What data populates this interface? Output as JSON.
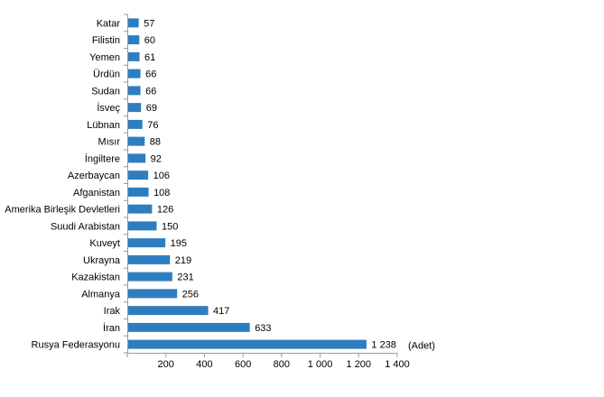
{
  "chart_data": {
    "type": "bar",
    "orientation": "horizontal",
    "categories": [
      "Katar",
      "Filistin",
      "Yemen",
      "Ürdün",
      "Sudan",
      "İsveç",
      "Lübnan",
      "Mısır",
      "İngiltere",
      "Azerbaycan",
      "Afganistan",
      "Amerika Birleşik Devletleri",
      "Suudi Arabistan",
      "Kuveyt",
      "Ukrayna",
      "Kazakistan",
      "Almanya",
      "Irak",
      "İran",
      "Rusya Federasyonu"
    ],
    "values": [
      57,
      60,
      61,
      66,
      66,
      69,
      76,
      88,
      92,
      106,
      108,
      126,
      150,
      195,
      219,
      231,
      256,
      417,
      633,
      1238
    ],
    "value_labels": [
      "57",
      "60",
      "61",
      "66",
      "66",
      "69",
      "76",
      "88",
      "92",
      "106",
      "108",
      "126",
      "150",
      "195",
      "219",
      "231",
      "256",
      "417",
      "633",
      "1 238"
    ],
    "xlim": [
      0,
      1400
    ],
    "x_ticks": [
      200,
      400,
      600,
      800,
      1000,
      1200,
      1400
    ],
    "x_tick_labels": [
      "200",
      "400",
      "600",
      "800",
      "1 000",
      "1 200",
      "1 400"
    ],
    "unit_label": "(Adet)",
    "bar_color": "#2e7ebf",
    "grid": false,
    "legend": "none"
  }
}
